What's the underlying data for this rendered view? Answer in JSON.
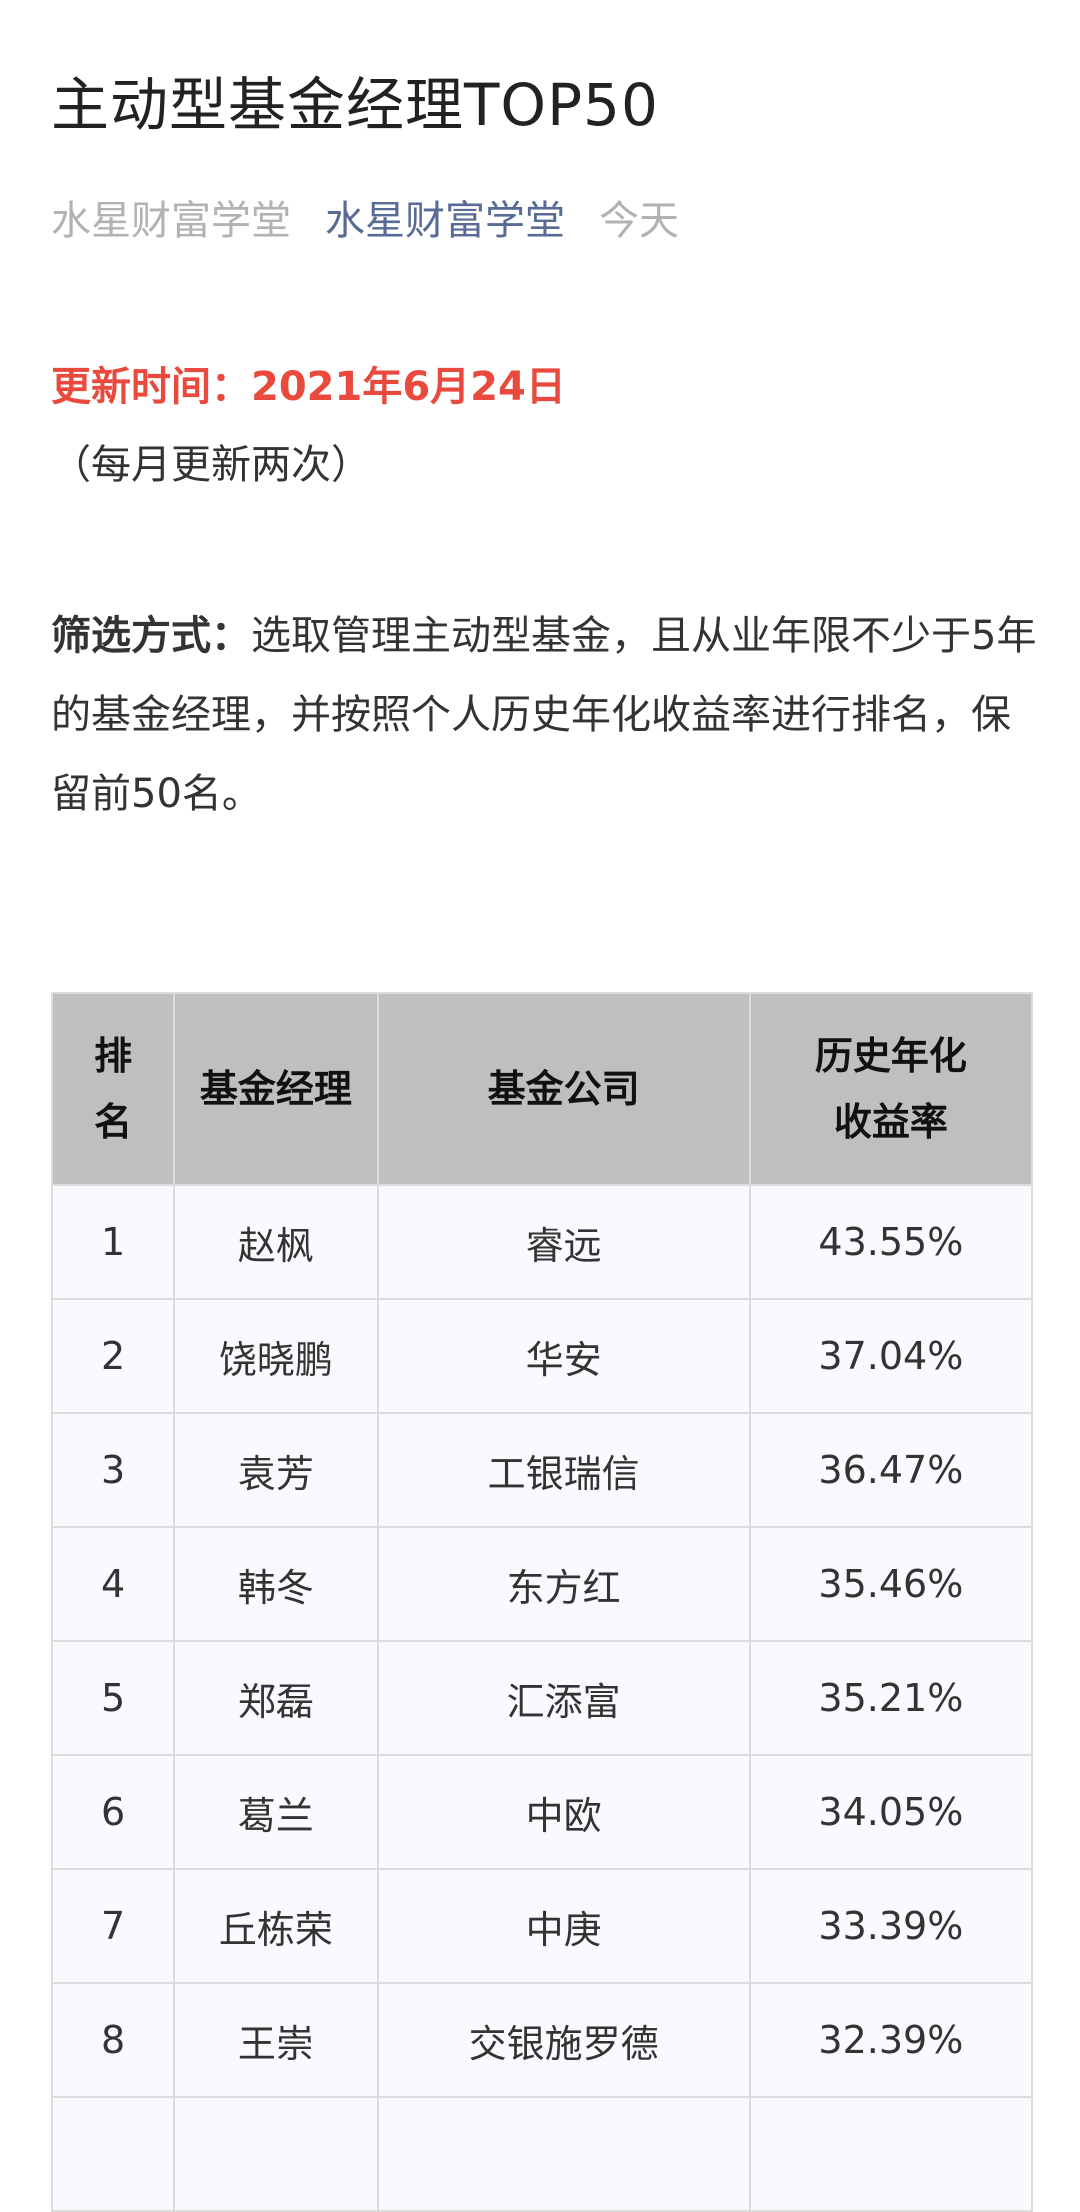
{
  "article": {
    "title": "主动型基金经理TOP50",
    "author": "水星财富学堂",
    "account": "水星财富学堂",
    "date": "今天"
  },
  "update": {
    "label": "更新时间：2021年6月24日",
    "frequency": "（每月更新两次）"
  },
  "filter": {
    "label": "筛选方式：",
    "text": "选取管理主动型基金，且从业年限不少于5年的基金经理，并按照个人历史年化收益率进行排名，保留前50名。"
  },
  "table": {
    "headers": [
      "排名",
      "基金经理",
      "基金公司",
      "历史年化收益率"
    ],
    "rows": [
      [
        "1",
        "赵枫",
        "睿远",
        "43.55%"
      ],
      [
        "2",
        "饶晓鹏",
        "华安",
        "37.04%"
      ],
      [
        "3",
        "袁芳",
        "工银瑞信",
        "36.47%"
      ],
      [
        "4",
        "韩冬",
        "东方红",
        "35.46%"
      ],
      [
        "5",
        "郑磊",
        "汇添富",
        "35.21%"
      ],
      [
        "6",
        "葛兰",
        "中欧",
        "34.05%"
      ],
      [
        "7",
        "丘栋荣",
        "中庚",
        "33.39%"
      ],
      [
        "8",
        "王崇",
        "交银施罗德",
        "32.39%"
      ]
    ]
  },
  "colors": {
    "accent_red": "#e94a3d",
    "account_link": "#576b95",
    "header_bg": "#bfbfbf"
  }
}
